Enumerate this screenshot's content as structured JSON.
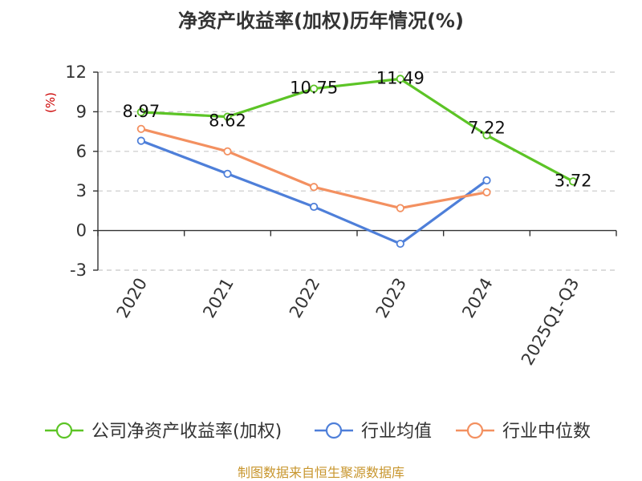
{
  "chart_data": {
    "type": "line",
    "title": "净资产收益率(加权)历年情况(%)",
    "ylabel": "(%)",
    "xlabel": "",
    "ylim": [
      -3,
      12
    ],
    "yticks": [
      12,
      9,
      6,
      3,
      0,
      -3
    ],
    "grid": true,
    "categories": [
      "2020",
      "2021",
      "2022",
      "2023",
      "2024",
      "2025Q1-Q3"
    ],
    "series": [
      {
        "name": "公司净资产收益率(加权)",
        "color": "#5cc426",
        "values": [
          8.97,
          8.62,
          10.75,
          11.49,
          7.22,
          3.72
        ],
        "labels": [
          "8.97",
          "8.62",
          "10.75",
          "11.49",
          "7.22",
          "3.72"
        ]
      },
      {
        "name": "行业均值",
        "color": "#4e7fd9",
        "values": [
          6.8,
          4.3,
          1.8,
          -1.0,
          3.8,
          null
        ]
      },
      {
        "name": "行业中位数",
        "color": "#f39060",
        "values": [
          7.7,
          6.0,
          3.3,
          1.7,
          2.9,
          null
        ]
      }
    ],
    "legend_position": "bottom",
    "source": "制图数据来自恒生聚源数据库"
  }
}
